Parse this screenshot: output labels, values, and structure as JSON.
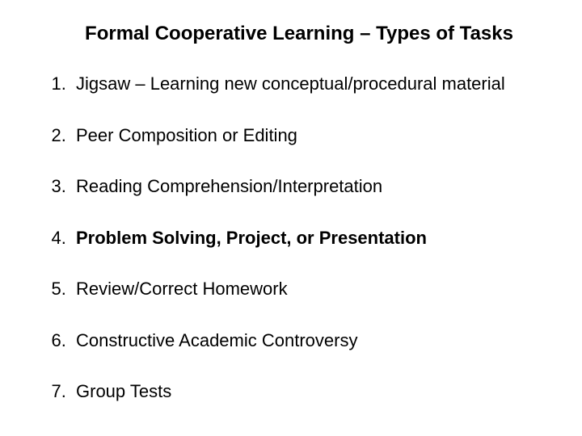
{
  "title": "Formal Cooperative Learning – Types of Tasks",
  "items": [
    {
      "text": "Jigsaw – Learning new conceptual/procedural material",
      "bold": false
    },
    {
      "text": "Peer Composition or Editing",
      "bold": false
    },
    {
      "text": "Reading Comprehension/Interpretation",
      "bold": false
    },
    {
      "text": "Problem Solving, Project, or Presentation",
      "bold": true
    },
    {
      "text": "Review/Correct Homework",
      "bold": false
    },
    {
      "text": "Constructive Academic Controversy",
      "bold": false
    },
    {
      "text": "Group Tests",
      "bold": false
    }
  ],
  "style": {
    "background_color": "#ffffff",
    "text_color": "#000000",
    "title_fontsize": 24,
    "item_fontsize": 22,
    "font_family": "Arial"
  }
}
